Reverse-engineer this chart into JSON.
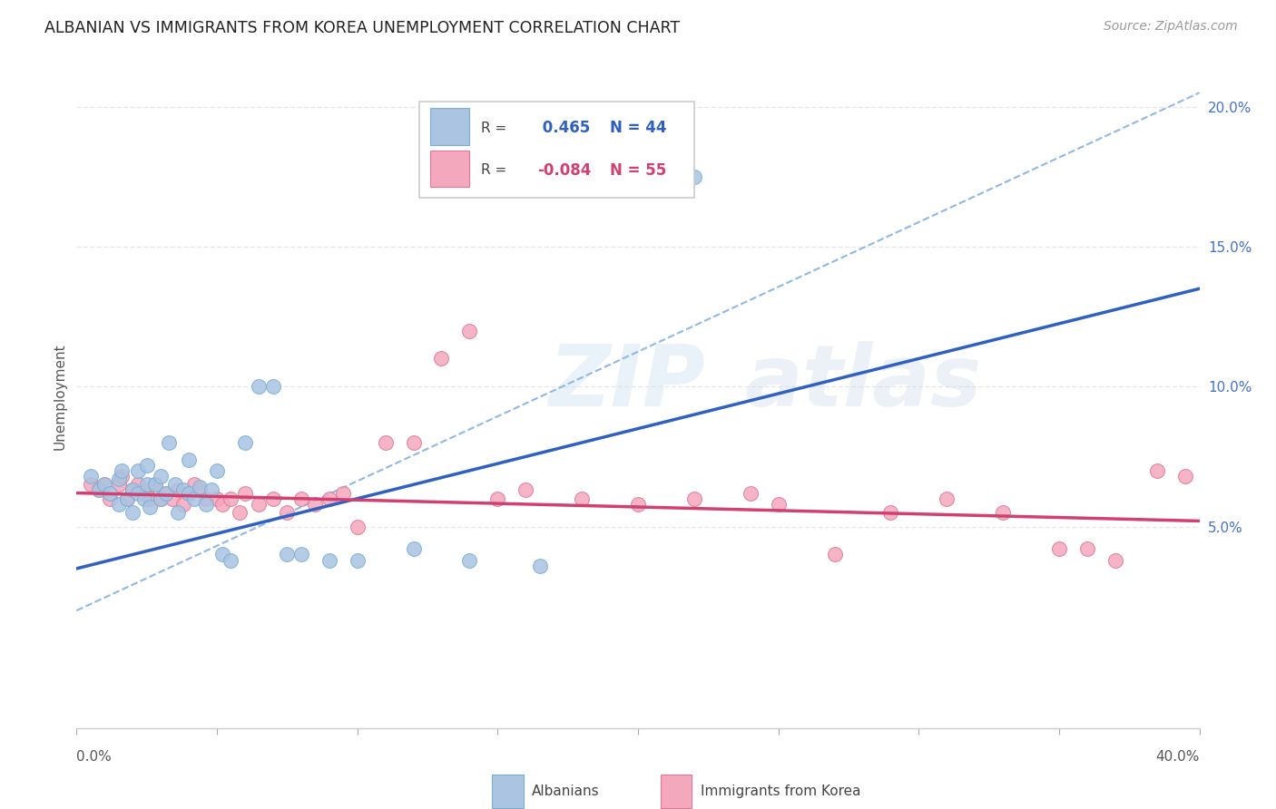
{
  "title": "ALBANIAN VS IMMIGRANTS FROM KOREA UNEMPLOYMENT CORRELATION CHART",
  "source": "Source: ZipAtlas.com",
  "ylabel": "Unemployment",
  "x_lim": [
    0.0,
    0.4
  ],
  "y_lim": [
    -0.022,
    0.215
  ],
  "albanians_R": 0.465,
  "albanians_N": 44,
  "korea_R": -0.084,
  "korea_N": 55,
  "albanian_color": "#aac4e2",
  "albanian_edge": "#7aafd4",
  "korea_color": "#f4a8be",
  "korea_edge": "#e07898",
  "albanian_line_color": "#3060c0",
  "korea_line_color": "#d04070",
  "dashed_line_color": "#90b8e0",
  "albanian_line_x0": 0.0,
  "albanian_line_y0": 0.035,
  "albanian_line_x1": 0.4,
  "albanian_line_y1": 0.135,
  "korea_line_x0": 0.0,
  "korea_line_y0": 0.062,
  "korea_line_x1": 0.4,
  "korea_line_y1": 0.052,
  "dash_line_x0": 0.0,
  "dash_line_y0": 0.02,
  "dash_line_x1": 0.4,
  "dash_line_y1": 0.205,
  "albanian_points_x": [
    0.005,
    0.008,
    0.01,
    0.012,
    0.015,
    0.015,
    0.016,
    0.018,
    0.02,
    0.02,
    0.022,
    0.022,
    0.024,
    0.025,
    0.025,
    0.026,
    0.028,
    0.03,
    0.03,
    0.032,
    0.033,
    0.035,
    0.036,
    0.038,
    0.04,
    0.04,
    0.042,
    0.044,
    0.046,
    0.048,
    0.05,
    0.052,
    0.055,
    0.06,
    0.065,
    0.07,
    0.075,
    0.08,
    0.09,
    0.1,
    0.12,
    0.14,
    0.165,
    0.22
  ],
  "albanian_points_y": [
    0.068,
    0.063,
    0.065,
    0.062,
    0.067,
    0.058,
    0.07,
    0.06,
    0.063,
    0.055,
    0.062,
    0.07,
    0.06,
    0.065,
    0.072,
    0.057,
    0.065,
    0.06,
    0.068,
    0.062,
    0.08,
    0.065,
    0.055,
    0.063,
    0.062,
    0.074,
    0.06,
    0.064,
    0.058,
    0.063,
    0.07,
    0.04,
    0.038,
    0.08,
    0.1,
    0.1,
    0.04,
    0.04,
    0.038,
    0.038,
    0.042,
    0.038,
    0.036,
    0.175
  ],
  "korea_points_x": [
    0.005,
    0.008,
    0.01,
    0.012,
    0.015,
    0.016,
    0.018,
    0.02,
    0.022,
    0.024,
    0.025,
    0.026,
    0.028,
    0.03,
    0.032,
    0.034,
    0.036,
    0.038,
    0.04,
    0.042,
    0.044,
    0.046,
    0.05,
    0.052,
    0.055,
    0.058,
    0.06,
    0.065,
    0.07,
    0.075,
    0.08,
    0.085,
    0.09,
    0.095,
    0.1,
    0.11,
    0.12,
    0.13,
    0.14,
    0.15,
    0.16,
    0.18,
    0.2,
    0.22,
    0.24,
    0.25,
    0.27,
    0.29,
    0.31,
    0.33,
    0.35,
    0.36,
    0.37,
    0.385,
    0.395
  ],
  "korea_points_y": [
    0.065,
    0.063,
    0.065,
    0.06,
    0.065,
    0.068,
    0.06,
    0.063,
    0.065,
    0.062,
    0.063,
    0.06,
    0.065,
    0.06,
    0.062,
    0.06,
    0.063,
    0.058,
    0.062,
    0.065,
    0.063,
    0.06,
    0.06,
    0.058,
    0.06,
    0.055,
    0.062,
    0.058,
    0.06,
    0.055,
    0.06,
    0.058,
    0.06,
    0.062,
    0.05,
    0.08,
    0.08,
    0.11,
    0.12,
    0.06,
    0.063,
    0.06,
    0.058,
    0.06,
    0.062,
    0.058,
    0.04,
    0.055,
    0.06,
    0.055,
    0.042,
    0.042,
    0.038,
    0.07,
    0.068
  ],
  "background_color": "#ffffff",
  "grid_color": "#e8e8e8",
  "watermark_zip": "ZIP",
  "watermark_atlas": "atlas",
  "watermark_color": "#d4e4f4",
  "watermark_alpha": 0.5,
  "y_ticks": [
    0.05,
    0.1,
    0.15,
    0.2
  ],
  "y_tick_labels": [
    "5.0%",
    "10.0%",
    "15.0%",
    "20.0%"
  ]
}
